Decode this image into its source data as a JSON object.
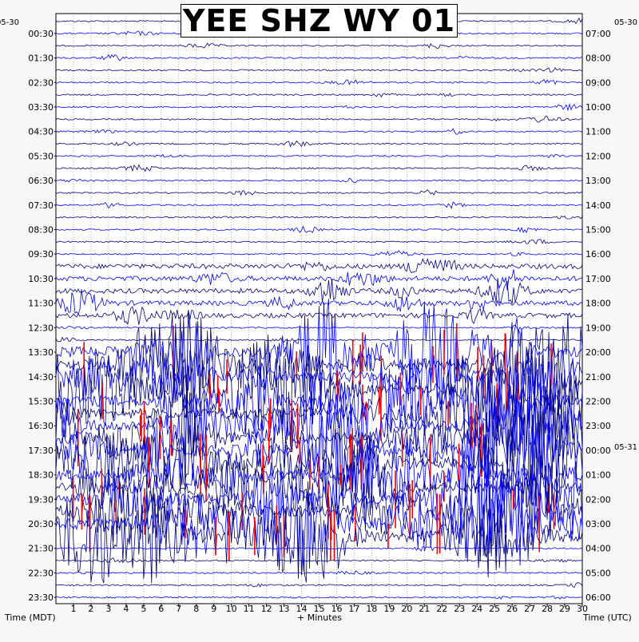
{
  "chart_data": {
    "type": "line",
    "title": "YEE SHZ WY 01",
    "xlabel": "+ Minutes",
    "left_axis_title": "Time (MDT)",
    "right_axis_title": "Time (UTC)",
    "x_ticks": [
      "1",
      "2",
      "3",
      "4",
      "5",
      "6",
      "7",
      "8",
      "9",
      "10",
      "11",
      "12",
      "13",
      "14",
      "15",
      "16",
      "17",
      "18",
      "19",
      "20",
      "21",
      "22",
      "23",
      "24",
      "25",
      "26",
      "27",
      "28",
      "29",
      "30"
    ],
    "xlim": [
      0,
      30
    ],
    "left_date_label": "05-30",
    "right_date_label": "05-30",
    "right_date_label_next": "05-31",
    "left_hour_labels": [
      "00:30",
      "01:30",
      "02:30",
      "03:30",
      "04:30",
      "05:30",
      "06:30",
      "07:30",
      "08:30",
      "09:30",
      "10:30",
      "11:30",
      "12:30",
      "13:30",
      "14:30",
      "15:30",
      "16:30",
      "17:30",
      "18:30",
      "19:30",
      "20:30",
      "21:30",
      "22:30",
      "23:30"
    ],
    "right_hour_labels": [
      "07:00",
      "08:00",
      "09:00",
      "10:00",
      "11:00",
      "12:00",
      "13:00",
      "14:00",
      "15:00",
      "16:00",
      "17:00",
      "18:00",
      "19:00",
      "20:00",
      "21:00",
      "22:00",
      "23:00",
      "00:00",
      "01:00",
      "02:00",
      "03:00",
      "04:00",
      "05:00",
      "06:00"
    ],
    "traces_per_hour": 2,
    "trace_colors": [
      "#000080",
      "#0000ff"
    ],
    "clip_color": "#ff0000",
    "grid": true,
    "activity_windows": [
      {
        "start_row": 20,
        "end_row": 24,
        "level": "moderate"
      },
      {
        "start_row": 27,
        "end_row": 42,
        "level": "high"
      }
    ]
  }
}
